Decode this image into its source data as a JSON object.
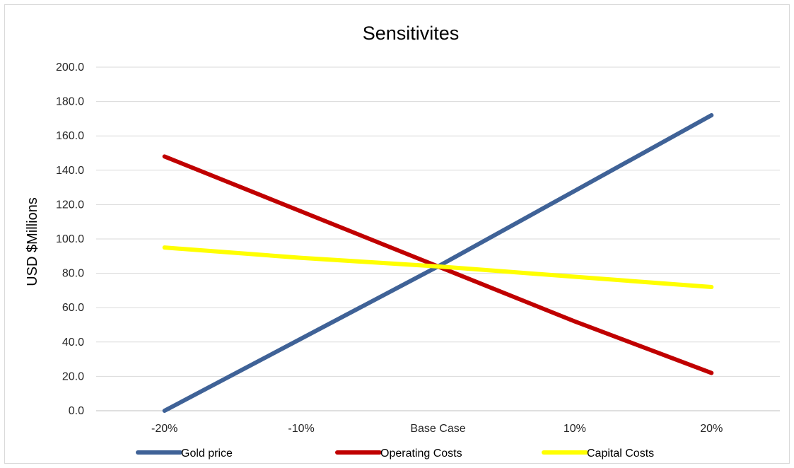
{
  "chart_data": {
    "type": "line",
    "title": "Sensitivites",
    "xlabel": "",
    "ylabel": "USD $Millions",
    "categories": [
      "-20%",
      "-10%",
      "Base Case",
      "10%",
      "20%"
    ],
    "y_ticks": [
      "0.0",
      "20.0",
      "40.0",
      "60.0",
      "80.0",
      "100.0",
      "120.0",
      "140.0",
      "160.0",
      "180.0",
      "200.0"
    ],
    "ylim": [
      0,
      200
    ],
    "grid": true,
    "legend_position": "bottom",
    "series": [
      {
        "name": "Gold price",
        "color": "#3f6297",
        "values": [
          0,
          42,
          84,
          128,
          172
        ]
      },
      {
        "name": "Operating Costs",
        "color": "#c00000",
        "values": [
          148,
          116,
          84,
          52,
          22
        ]
      },
      {
        "name": "Capital Costs",
        "color": "#ffff00",
        "values": [
          95,
          89,
          84,
          78,
          72
        ]
      }
    ]
  }
}
